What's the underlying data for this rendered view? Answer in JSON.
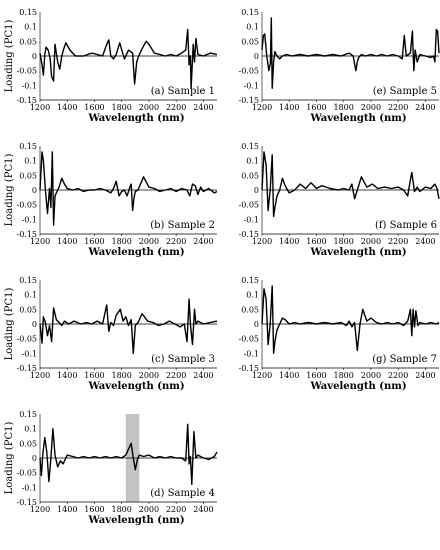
{
  "chart_data": [
    {
      "type": "line",
      "caption": "(a) Sample 1",
      "xlabel": "Wavelength (nm)",
      "ylabel": "Loading (PC1)",
      "xlim": [
        1200,
        2500
      ],
      "ylim": [
        -0.15,
        0.15
      ],
      "xticks": [
        "1200",
        "1400",
        "1600",
        "1800",
        "2000",
        "2200",
        "2400"
      ],
      "yticks": [
        "-0.15",
        "-0.1",
        "-0.05",
        "0",
        "0.05",
        "0.1",
        "0.15"
      ],
      "series": [
        {
          "x": [
            1200,
            1215,
            1225,
            1235,
            1245,
            1260,
            1275,
            1285,
            1300,
            1310,
            1330,
            1345,
            1360,
            1375,
            1390,
            1420,
            1460,
            1520,
            1580,
            1620,
            1660,
            1690,
            1705,
            1720,
            1740,
            1760,
            1785,
            1820,
            1850,
            1880,
            1895,
            1910,
            1925,
            1950,
            1980,
            2000,
            2040,
            2080,
            2120,
            2160,
            2200,
            2240,
            2270,
            2285,
            2295,
            2305,
            2310,
            2325,
            2335,
            2345,
            2360,
            2400,
            2450,
            2500
          ],
          "y": [
            0.01,
            -0.03,
            -0.065,
            0.005,
            0.03,
            0.02,
            -0.01,
            -0.07,
            -0.085,
            0.04,
            -0.02,
            -0.045,
            0.0,
            0.025,
            0.045,
            0.02,
            0.0,
            0.0,
            0.01,
            0.005,
            0.0,
            0.04,
            0.055,
            0.0,
            -0.01,
            0.005,
            0.045,
            -0.01,
            0.02,
            0.01,
            -0.095,
            -0.02,
            0.0,
            0.025,
            0.05,
            0.04,
            0.01,
            0.005,
            0.0,
            0.005,
            0.0,
            0.01,
            0.02,
            0.09,
            -0.03,
            0.0,
            -0.11,
            0.04,
            -0.02,
            0.06,
            0.005,
            0.0,
            0.01,
            0.005
          ]
        }
      ]
    },
    {
      "type": "line",
      "caption": "(e) Sample 5",
      "xlabel": "Wavelength (nm)",
      "ylabel": "",
      "xlim": [
        1200,
        2500
      ],
      "ylim": [
        -0.15,
        0.15
      ],
      "xticks": [
        "1200",
        "1400",
        "1600",
        "1800",
        "2000",
        "2200",
        "2400"
      ],
      "yticks": [
        "-0.15",
        "-0.1",
        "-0.05",
        "0",
        "0.05",
        "0.1",
        "0.15"
      ],
      "series": [
        {
          "x": [
            1200,
            1210,
            1220,
            1235,
            1250,
            1262,
            1268,
            1275,
            1285,
            1295,
            1310,
            1330,
            1350,
            1380,
            1420,
            1480,
            1540,
            1600,
            1660,
            1720,
            1780,
            1840,
            1870,
            1890,
            1900,
            1910,
            1930,
            1960,
            2000,
            2040,
            2080,
            2120,
            2160,
            2200,
            2230,
            2245,
            2260,
            2290,
            2305,
            2315,
            2325,
            2340,
            2360,
            2400,
            2440,
            2460,
            2470,
            2480,
            2490,
            2500
          ],
          "y": [
            0.02,
            0.07,
            0.075,
            0.0,
            -0.05,
            -0.025,
            0.13,
            -0.11,
            -0.02,
            0.015,
            0.0,
            -0.01,
            0.0,
            0.005,
            0.0,
            0.005,
            0.0,
            0.005,
            0.0,
            0.005,
            0.0,
            0.01,
            0.0,
            -0.05,
            -0.02,
            -0.005,
            0.005,
            0.0,
            0.005,
            0.0,
            0.005,
            0.0,
            0.005,
            0.0,
            -0.01,
            0.07,
            0.0,
            0.01,
            0.085,
            -0.05,
            0.02,
            -0.02,
            0.005,
            0.0,
            -0.005,
            0.0,
            -0.02,
            0.09,
            0.085,
            0.01
          ]
        }
      ]
    },
    {
      "type": "line",
      "caption": "(b) Sample 2",
      "xlabel": "Wavelength (nm)",
      "ylabel": "Loading (PC1)",
      "xlim": [
        1200,
        2500
      ],
      "ylim": [
        -0.15,
        0.15
      ],
      "xticks": [
        "1200",
        "1400",
        "1600",
        "1800",
        "2000",
        "2200",
        "2400"
      ],
      "yticks": [
        "-0.15",
        "-0.1",
        "-0.05",
        "0",
        "0.05",
        "0.1",
        "0.15"
      ],
      "series": [
        {
          "x": [
            1200,
            1215,
            1225,
            1240,
            1255,
            1270,
            1280,
            1290,
            1300,
            1310,
            1325,
            1340,
            1360,
            1380,
            1400,
            1440,
            1480,
            1520,
            1560,
            1600,
            1640,
            1680,
            1720,
            1740,
            1760,
            1780,
            1800,
            1820,
            1840,
            1860,
            1870,
            1880,
            1890,
            1900,
            1920,
            1960,
            2000,
            2040,
            2080,
            2120,
            2160,
            2200,
            2240,
            2280,
            2300,
            2320,
            2340,
            2360,
            2380,
            2400,
            2440,
            2480,
            2500
          ],
          "y": [
            0.0,
            0.13,
            0.1,
            0.0,
            -0.08,
            0.005,
            -0.06,
            0.13,
            -0.12,
            -0.02,
            -0.005,
            0.01,
            0.04,
            0.02,
            0.005,
            0.0,
            0.005,
            -0.005,
            0.0,
            0.0,
            0.005,
            0.0,
            -0.01,
            0.005,
            0.03,
            -0.02,
            -0.005,
            0.0,
            -0.02,
            0.01,
            0.02,
            -0.07,
            -0.03,
            -0.005,
            0.0,
            0.045,
            0.01,
            0.005,
            -0.005,
            0.0,
            0.005,
            -0.005,
            0.005,
            0.0,
            -0.02,
            0.02,
            0.015,
            -0.015,
            0.01,
            -0.005,
            0.005,
            -0.01,
            -0.005
          ]
        }
      ]
    },
    {
      "type": "line",
      "caption": "(f) Sample 6",
      "xlabel": "Wavelength (nm)",
      "ylabel": "",
      "xlim": [
        1200,
        2500
      ],
      "ylim": [
        -0.15,
        0.15
      ],
      "xticks": [
        "1200",
        "1400",
        "1600",
        "1800",
        "2000",
        "2200",
        "2400"
      ],
      "yticks": [
        "-0.15",
        "-0.1",
        "-0.05",
        "0",
        "0.05",
        "0.1",
        "0.15"
      ],
      "series": [
        {
          "x": [
            1200,
            1215,
            1230,
            1245,
            1260,
            1275,
            1285,
            1295,
            1310,
            1330,
            1350,
            1370,
            1400,
            1440,
            1480,
            1520,
            1560,
            1600,
            1640,
            1700,
            1760,
            1800,
            1840,
            1860,
            1880,
            1900,
            1930,
            1970,
            2010,
            2050,
            2100,
            2150,
            2200,
            2240,
            2270,
            2290,
            2300,
            2320,
            2340,
            2360,
            2400,
            2440,
            2470,
            2485,
            2500
          ],
          "y": [
            0.0,
            0.13,
            0.085,
            -0.07,
            0.0,
            0.12,
            -0.09,
            -0.06,
            -0.02,
            0.0,
            0.04,
            0.015,
            -0.01,
            0.0,
            0.02,
            0.005,
            0.025,
            0.005,
            0.015,
            0.005,
            0.0,
            0.005,
            0.0,
            0.02,
            -0.03,
            0.0,
            0.045,
            0.01,
            0.02,
            0.005,
            0.01,
            0.005,
            0.01,
            0.0,
            -0.02,
            0.035,
            0.06,
            -0.005,
            0.01,
            -0.005,
            0.01,
            0.005,
            0.02,
            0.005,
            -0.03
          ]
        }
      ]
    },
    {
      "type": "line",
      "caption": "(c) Sample 3",
      "xlabel": "Wavelength (nm)",
      "ylabel": "Loading (PC1)",
      "xlim": [
        1200,
        2500
      ],
      "ylim": [
        -0.15,
        0.15
      ],
      "xticks": [
        "1200",
        "1400",
        "1600",
        "1800",
        "2000",
        "2200",
        "2400"
      ],
      "yticks": [
        "-0.15",
        "-0.1",
        "-0.05",
        "0",
        "0.05",
        "0.1",
        "0.15"
      ],
      "series": [
        {
          "x": [
            1200,
            1215,
            1225,
            1240,
            1255,
            1270,
            1285,
            1300,
            1320,
            1340,
            1360,
            1380,
            1410,
            1450,
            1500,
            1540,
            1580,
            1620,
            1660,
            1690,
            1705,
            1720,
            1740,
            1760,
            1790,
            1810,
            1830,
            1850,
            1870,
            1885,
            1900,
            1920,
            1950,
            1990,
            2030,
            2070,
            2110,
            2150,
            2190,
            2230,
            2260,
            2280,
            2295,
            2305,
            2320,
            2335,
            2345,
            2360,
            2400,
            2450,
            2500
          ],
          "y": [
            0.0,
            -0.065,
            0.025,
            0.005,
            -0.04,
            -0.005,
            -0.06,
            0.055,
            0.015,
            0.005,
            -0.005,
            0.01,
            0.0,
            0.01,
            0.0,
            0.005,
            0.0,
            0.01,
            0.0,
            0.065,
            -0.025,
            0.005,
            -0.005,
            0.03,
            0.05,
            0.01,
            0.025,
            -0.005,
            0.015,
            -0.1,
            -0.005,
            0.005,
            0.035,
            0.01,
            0.005,
            -0.005,
            0.0,
            0.01,
            0.0,
            -0.01,
            0.0,
            -0.06,
            0.085,
            0.0,
            -0.07,
            0.05,
            0.0,
            0.01,
            0.0,
            0.005,
            0.01
          ]
        }
      ]
    },
    {
      "type": "line",
      "caption": "(g) Sample 7",
      "xlabel": "Wavelength (nm)",
      "ylabel": "",
      "xlim": [
        1200,
        2500
      ],
      "ylim": [
        -0.15,
        0.15
      ],
      "xticks": [
        "1200",
        "1400",
        "1600",
        "1800",
        "2000",
        "2200",
        "2400"
      ],
      "yticks": [
        "-0.15",
        "-0.1",
        "-0.05",
        "0",
        "0.05",
        "0.1",
        "0.15"
      ],
      "series": [
        {
          "x": [
            1200,
            1215,
            1230,
            1245,
            1260,
            1275,
            1285,
            1295,
            1310,
            1330,
            1350,
            1370,
            1400,
            1440,
            1480,
            1540,
            1600,
            1660,
            1720,
            1780,
            1820,
            1840,
            1860,
            1880,
            1900,
            1920,
            1940,
            1970,
            2000,
            2040,
            2080,
            2120,
            2160,
            2200,
            2240,
            2270,
            2290,
            2300,
            2310,
            2320,
            2330,
            2345,
            2360,
            2400,
            2440,
            2480,
            2500
          ],
          "y": [
            0.0,
            0.12,
            0.085,
            -0.07,
            0.0,
            0.13,
            -0.1,
            -0.06,
            -0.02,
            0.0,
            0.02,
            0.015,
            0.0,
            0.005,
            0.0,
            0.005,
            0.0,
            0.005,
            0.0,
            0.005,
            -0.005,
            0.01,
            -0.01,
            0.005,
            -0.09,
            0.0,
            0.05,
            0.01,
            0.02,
            0.005,
            0.0,
            0.005,
            0.0,
            0.005,
            -0.005,
            0.01,
            0.05,
            -0.04,
            0.05,
            -0.01,
            0.045,
            -0.005,
            0.005,
            0.0,
            0.005,
            0.0,
            0.005
          ]
        }
      ]
    },
    {
      "type": "line",
      "caption": "(d) Sample 4",
      "xlabel": "Wavelength (nm)",
      "ylabel": "Loading (PC1)",
      "xlim": [
        1200,
        2500
      ],
      "ylim": [
        -0.15,
        0.15
      ],
      "xticks": [
        "1200",
        "1400",
        "1600",
        "1800",
        "2000",
        "2200",
        "2400"
      ],
      "yticks": [
        "-0.15",
        "-0.1",
        "-0.05",
        "0",
        "0.05",
        "0.1",
        "0.15"
      ],
      "highlight_band": [
        1830,
        1930
      ],
      "series": [
        {
          "x": [
            1200,
            1210,
            1220,
            1235,
            1250,
            1265,
            1280,
            1295,
            1310,
            1330,
            1350,
            1370,
            1400,
            1440,
            1480,
            1520,
            1560,
            1600,
            1640,
            1680,
            1720,
            1760,
            1800,
            1830,
            1850,
            1870,
            1885,
            1900,
            1915,
            1930,
            1960,
            2000,
            2040,
            2080,
            2120,
            2160,
            2200,
            2240,
            2270,
            2285,
            2295,
            2305,
            2315,
            2330,
            2345,
            2360,
            2400,
            2440,
            2480,
            2500
          ],
          "y": [
            0.0,
            -0.06,
            0.01,
            0.07,
            0.02,
            -0.08,
            0.0,
            0.1,
            0.01,
            -0.03,
            -0.01,
            -0.02,
            0.01,
            0.005,
            0.0,
            0.005,
            0.0,
            0.005,
            0.0,
            0.005,
            0.0,
            0.005,
            0.0,
            0.01,
            0.03,
            0.05,
            0.0,
            -0.04,
            -0.005,
            0.01,
            0.005,
            0.01,
            0.0,
            0.005,
            0.0,
            0.005,
            0.0,
            0.0,
            -0.01,
            0.115,
            -0.02,
            0.005,
            -0.09,
            0.09,
            0.0,
            0.01,
            0.0,
            -0.005,
            0.005,
            0.02
          ]
        }
      ]
    }
  ]
}
